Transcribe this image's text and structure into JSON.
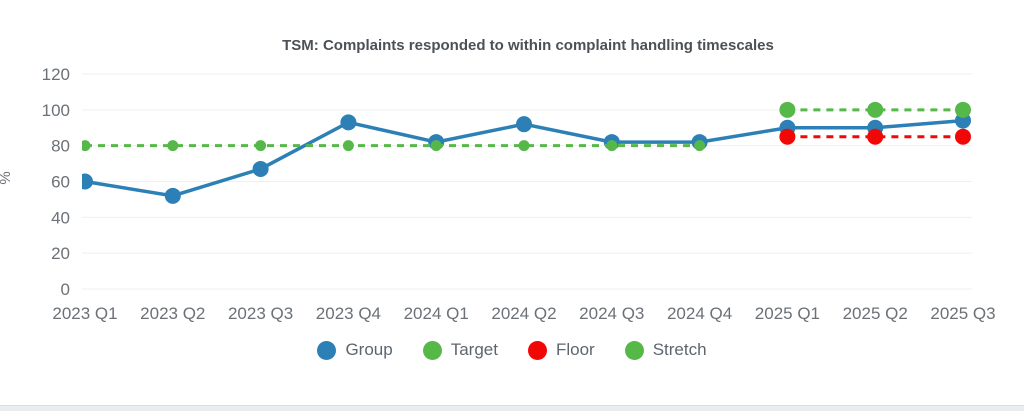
{
  "page": {
    "background": "#ffffff",
    "footer_strip_color": "#e9edf0"
  },
  "chart_data": {
    "type": "line",
    "title": "TSM: Complaints responded to within complaint handling timescales",
    "ylabel": "%",
    "ylim": [
      0,
      120
    ],
    "yticks": [
      0,
      20,
      40,
      60,
      80,
      100,
      120
    ],
    "grid": true,
    "legend_position": "bottom",
    "categories": [
      "2023 Q1",
      "2023 Q2",
      "2023 Q3",
      "2023 Q4",
      "2024 Q1",
      "2024 Q2",
      "2024 Q3",
      "2024 Q4",
      "2025 Q1",
      "2025 Q2",
      "2025 Q3"
    ],
    "series": [
      {
        "name": "Group",
        "color": "#2d80b6",
        "style": "solid",
        "marker_r": 8,
        "values": [
          60,
          52,
          67,
          93,
          82,
          92,
          82,
          82,
          90,
          90,
          94
        ]
      },
      {
        "name": "Target",
        "color": "#57b84a",
        "style": "dashed",
        "marker_r": 5.5,
        "values": [
          80,
          80,
          80,
          80,
          80,
          80,
          80,
          80,
          null,
          null,
          null
        ]
      },
      {
        "name": "Floor",
        "color": "#f20707",
        "style": "dashed",
        "marker_r": 8,
        "values": [
          null,
          null,
          null,
          null,
          null,
          null,
          null,
          null,
          85,
          85,
          85
        ]
      },
      {
        "name": "Stretch",
        "color": "#57b84a",
        "style": "dashed",
        "marker_r": 8,
        "values": [
          null,
          null,
          null,
          null,
          null,
          null,
          null,
          null,
          100,
          100,
          100
        ]
      }
    ],
    "colors": {
      "grid": "#efefef",
      "axis_text": "#6b7177",
      "title_text": "#4b5157",
      "legend_text": "#5d666e"
    }
  }
}
